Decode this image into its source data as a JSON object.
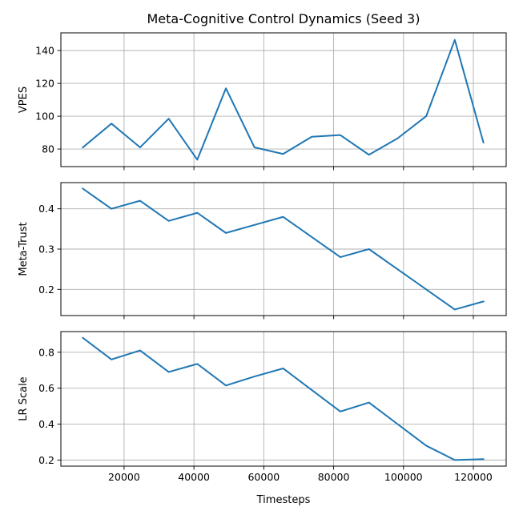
{
  "chart_data": {
    "type": "line",
    "title": "Meta-Cognitive Control Dynamics (Seed 3)",
    "xlabel": "Timesteps",
    "x": [
      8192,
      16384,
      24576,
      32768,
      40960,
      49152,
      57344,
      65536,
      73728,
      81920,
      90112,
      98304,
      106496,
      114688,
      122880
    ],
    "xlim": [
      1900,
      129400
    ],
    "xticks": [
      20000,
      40000,
      60000,
      80000,
      100000,
      120000
    ],
    "xtick_labels": [
      "20000",
      "40000",
      "60000",
      "80000",
      "100000",
      "120000"
    ],
    "grid": true,
    "colors": {
      "series": "#1f77b4",
      "grid": "#b0b0b0"
    },
    "panels": [
      {
        "ylabel": "VPES",
        "ylim": [
          69.3,
          150.8
        ],
        "yticks": [
          80,
          100,
          120,
          140
        ],
        "ytick_labels": [
          "80",
          "100",
          "120",
          "140"
        ],
        "values": [
          81,
          95.5,
          81,
          98.5,
          73.5,
          117,
          81,
          77,
          87.5,
          88.5,
          76.5,
          86.5,
          100,
          146.5,
          84
        ]
      },
      {
        "ylabel": "Meta-Trust",
        "ylim": [
          0.135,
          0.465
        ],
        "yticks": [
          0.2,
          0.3,
          0.4
        ],
        "ytick_labels": [
          "0.2",
          "0.3",
          "0.4"
        ],
        "values": [
          0.45,
          0.4,
          0.42,
          0.37,
          0.39,
          0.34,
          0.36,
          0.38,
          0.33,
          0.28,
          0.3,
          0.25,
          0.2,
          0.15,
          0.17
        ]
      },
      {
        "ylabel": "LR Scale",
        "ylim": [
          0.166,
          0.915
        ],
        "yticks": [
          0.2,
          0.4,
          0.6,
          0.8
        ],
        "ytick_labels": [
          "0.2",
          "0.4",
          "0.6",
          "0.8"
        ],
        "values": [
          0.88,
          0.76,
          0.81,
          0.69,
          0.735,
          0.615,
          0.665,
          0.71,
          0.59,
          0.47,
          0.52,
          0.4,
          0.28,
          0.2,
          0.205
        ]
      }
    ]
  }
}
